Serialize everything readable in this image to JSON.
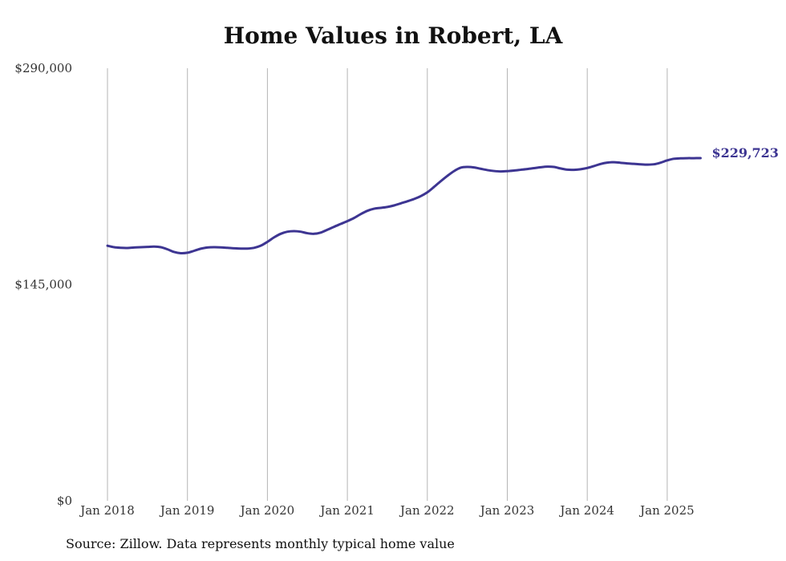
{
  "chart_data": {
    "type": "line",
    "title": "Home Values in Robert, LA",
    "source": "Source: Zillow. Data represents monthly typical home value",
    "ylim": [
      0,
      290000
    ],
    "y_ticks": [
      0,
      145000,
      290000
    ],
    "y_tick_labels": [
      "$0",
      "$145,000",
      "$290,000"
    ],
    "x_tick_labels": [
      "Jan 2018",
      "Jan 2019",
      "Jan 2020",
      "Jan 2021",
      "Jan 2022",
      "Jan 2023",
      "Jan 2024",
      "Jan 2025"
    ],
    "grid": "vertical",
    "line_color": "#3d3592",
    "last_value_label": "$229,723",
    "series": [
      {
        "x": [
          "2018-01",
          "2018-02",
          "2018-03",
          "2018-04",
          "2018-05",
          "2018-06",
          "2018-07",
          "2018-08",
          "2018-09",
          "2018-10",
          "2018-11",
          "2018-12",
          "2019-01",
          "2019-02",
          "2019-03",
          "2019-04",
          "2019-05",
          "2019-06",
          "2019-07",
          "2019-08",
          "2019-09",
          "2019-10",
          "2019-11",
          "2019-12",
          "2020-01",
          "2020-02",
          "2020-03",
          "2020-04",
          "2020-05",
          "2020-06",
          "2020-07",
          "2020-08",
          "2020-09",
          "2020-10",
          "2020-11",
          "2020-12",
          "2021-01",
          "2021-02",
          "2021-03",
          "2021-04",
          "2021-05",
          "2021-06",
          "2021-07",
          "2021-08",
          "2021-09",
          "2021-10",
          "2021-11",
          "2021-12",
          "2022-01",
          "2022-02",
          "2022-03",
          "2022-04",
          "2022-05",
          "2022-06",
          "2022-07",
          "2022-08",
          "2022-09",
          "2022-10",
          "2022-11",
          "2022-12",
          "2023-01",
          "2023-02",
          "2023-03",
          "2023-04",
          "2023-05",
          "2023-06",
          "2023-07",
          "2023-08",
          "2023-09",
          "2023-10",
          "2023-11",
          "2023-12",
          "2024-01",
          "2024-02",
          "2024-03",
          "2024-04",
          "2024-05",
          "2024-06",
          "2024-07",
          "2024-08",
          "2024-09",
          "2024-10",
          "2024-11",
          "2024-12",
          "2025-01",
          "2025-02",
          "2025-03",
          "2025-04",
          "2025-05",
          "2025-06"
        ],
        "values": [
          171000,
          170000,
          169600,
          169500,
          169800,
          170000,
          170200,
          170400,
          170000,
          168600,
          166800,
          166000,
          166300,
          167600,
          169000,
          169800,
          170000,
          169900,
          169600,
          169300,
          169100,
          169100,
          169600,
          171000,
          173600,
          176600,
          179000,
          180400,
          180800,
          180400,
          179400,
          179000,
          179800,
          181700,
          183700,
          185600,
          187500,
          189600,
          192200,
          194400,
          195800,
          196400,
          197000,
          198000,
          199400,
          200800,
          202300,
          204200,
          206800,
          210400,
          214200,
          217800,
          221000,
          223300,
          223800,
          223500,
          222600,
          221700,
          221100,
          220800,
          221000,
          221400,
          221900,
          222400,
          223000,
          223600,
          224000,
          223800,
          222800,
          222000,
          221900,
          222300,
          223100,
          224400,
          225800,
          226700,
          227000,
          226600,
          226200,
          225900,
          225600,
          225400,
          225600,
          226700,
          228200,
          229300,
          229600,
          229700,
          229700,
          229723
        ]
      }
    ]
  }
}
